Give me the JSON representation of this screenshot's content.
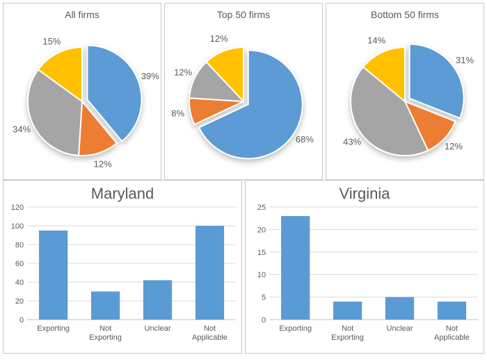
{
  "colors": {
    "blue": "#5b9bd5",
    "orange": "#ed7d31",
    "grey": "#a5a5a5",
    "yellow": "#ffc000",
    "panel_border": "#c8c8c8",
    "text": "#595959",
    "gridline": "#d9d9d9",
    "axis": "#bfbfbf",
    "slice_stroke": "#ffffff",
    "shadow": "rgba(0,0,0,0.25)"
  },
  "pies": [
    {
      "title": "All firms",
      "title_fontsize": 14,
      "start_angle_deg": 0,
      "radius": 78,
      "slices": [
        {
          "value": 39,
          "label": "39%",
          "color_key": "blue",
          "explode": 8
        },
        {
          "value": 12,
          "label": "12%",
          "color_key": "orange",
          "explode": 0
        },
        {
          "value": 34,
          "label": "34%",
          "color_key": "grey",
          "explode": 0
        },
        {
          "value": 15,
          "label": "15%",
          "color_key": "yellow",
          "explode": 0
        }
      ]
    },
    {
      "title": "Top 50 firms",
      "title_fontsize": 14,
      "start_angle_deg": 0,
      "radius": 78,
      "slices": [
        {
          "value": 68,
          "label": "68%",
          "color_key": "blue",
          "explode": 8
        },
        {
          "value": 8,
          "label": "8%",
          "color_key": "orange",
          "explode": 0
        },
        {
          "value": 12,
          "label": "12%",
          "color_key": "grey",
          "explode": 0
        },
        {
          "value": 12,
          "label": "12%",
          "color_key": "yellow",
          "explode": 0
        }
      ]
    },
    {
      "title": "Bottom 50 firms",
      "title_fontsize": 14,
      "start_angle_deg": 0,
      "radius": 78,
      "slices": [
        {
          "value": 31,
          "label": "31%",
          "color_key": "blue",
          "explode": 8
        },
        {
          "value": 12,
          "label": "12%",
          "color_key": "orange",
          "explode": 0
        },
        {
          "value": 43,
          "label": "43%",
          "color_key": "grey",
          "explode": 0
        },
        {
          "value": 14,
          "label": "14%",
          "color_key": "yellow",
          "explode": 0
        }
      ]
    }
  ],
  "bars": [
    {
      "title": "Maryland",
      "title_fontsize": 22,
      "categories": [
        "Exporting",
        "Not Exporting",
        "Unclear",
        "Not Applicable"
      ],
      "values": [
        95,
        30,
        42,
        100
      ],
      "bar_color_key": "blue",
      "y_min": 0,
      "y_max": 120,
      "y_step": 20,
      "bar_width_frac": 0.55,
      "label_fontsize": 11
    },
    {
      "title": "Virginia",
      "title_fontsize": 22,
      "categories": [
        "Exporting",
        "Not Exporting",
        "Unclear",
        "Not Applicable"
      ],
      "values": [
        23,
        4,
        5,
        4
      ],
      "bar_color_key": "blue",
      "y_min": 0,
      "y_max": 25,
      "y_step": 5,
      "bar_width_frac": 0.55,
      "label_fontsize": 11
    }
  ]
}
